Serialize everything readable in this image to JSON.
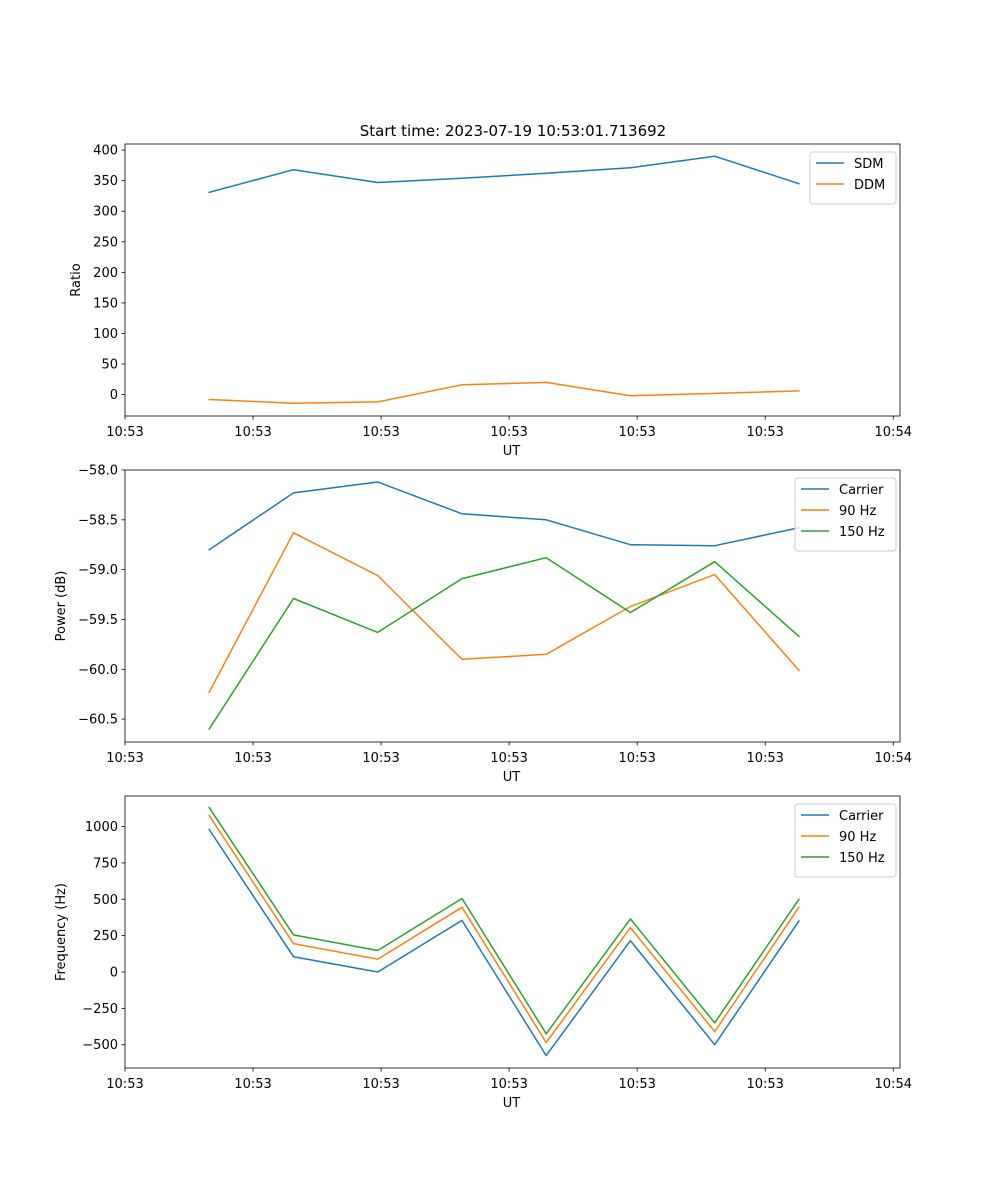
{
  "chart_data": [
    {
      "type": "line",
      "title": "Start time: 2023-07-19 10:53:01.713692",
      "xlabel": "UT",
      "ylabel": "Ratio",
      "x_index": [
        1,
        2,
        3,
        4,
        5,
        6,
        7,
        8
      ],
      "xlim": [
        0,
        9.2
      ],
      "x_tick_positions": [
        0,
        1.52,
        3.04,
        4.56,
        6.08,
        7.6,
        9.12
      ],
      "x_tick_labels": [
        "10:53",
        "10:53",
        "10:53",
        "10:53",
        "10:53",
        "10:53",
        "10:54"
      ],
      "ylim": [
        -35,
        410
      ],
      "y_ticks": [
        0,
        50,
        100,
        150,
        200,
        250,
        300,
        350,
        400
      ],
      "y_tick_labels": [
        "0",
        "50",
        "100",
        "150",
        "200",
        "250",
        "300",
        "350",
        "400"
      ],
      "legend": "top-right",
      "series": [
        {
          "name": "SDM",
          "color": "#1f77b4",
          "values": [
            331,
            368,
            347,
            354,
            362,
            371,
            390,
            345
          ]
        },
        {
          "name": "DDM",
          "color": "#ff7f0e",
          "values": [
            -8,
            -14,
            -12,
            16,
            20,
            -2,
            2,
            6
          ]
        }
      ]
    },
    {
      "type": "line",
      "title": "",
      "xlabel": "UT",
      "ylabel": "Power (dB)",
      "x_index": [
        1,
        2,
        3,
        4,
        5,
        6,
        7,
        8
      ],
      "xlim": [
        0,
        9.2
      ],
      "x_tick_positions": [
        0,
        1.52,
        3.04,
        4.56,
        6.08,
        7.6,
        9.12
      ],
      "x_tick_labels": [
        "10:53",
        "10:53",
        "10:53",
        "10:53",
        "10:53",
        "10:53",
        "10:54"
      ],
      "ylim": [
        -60.73,
        -58.0
      ],
      "y_ticks": [
        -58.0,
        -58.5,
        -59.0,
        -59.5,
        -60.0,
        -60.5
      ],
      "y_tick_labels": [
        "−58.0",
        "−58.5",
        "−59.0",
        "−59.5",
        "−60.0",
        "−60.5"
      ],
      "legend": "top-right",
      "series": [
        {
          "name": "Carrier",
          "color": "#1f77b4",
          "values": [
            -58.8,
            -58.23,
            -58.12,
            -58.44,
            -58.5,
            -58.75,
            -58.76,
            -58.58
          ]
        },
        {
          "name": "90 Hz",
          "color": "#ff7f0e",
          "values": [
            -60.23,
            -58.63,
            -59.06,
            -59.9,
            -59.85,
            -59.37,
            -59.05,
            -60.01
          ]
        },
        {
          "name": "150 Hz",
          "color": "#2ca02c",
          "values": [
            -60.6,
            -59.29,
            -59.63,
            -59.09,
            -58.88,
            -59.43,
            -58.92,
            -59.67
          ]
        }
      ]
    },
    {
      "type": "line",
      "title": "",
      "xlabel": "UT",
      "ylabel": "Frequency (Hz)",
      "x_index": [
        1,
        2,
        3,
        4,
        5,
        6,
        7,
        8
      ],
      "xlim": [
        0,
        9.2
      ],
      "x_tick_positions": [
        0,
        1.52,
        3.04,
        4.56,
        6.08,
        7.6,
        9.12
      ],
      "x_tick_labels": [
        "10:53",
        "10:53",
        "10:53",
        "10:53",
        "10:53",
        "10:53",
        "10:54"
      ],
      "ylim": [
        -660,
        1210
      ],
      "y_ticks": [
        -500,
        -250,
        0,
        250,
        500,
        750,
        1000
      ],
      "y_tick_labels": [
        "−500",
        "−250",
        "0",
        "250",
        "500",
        "750",
        "1000"
      ],
      "legend": "top-right",
      "series": [
        {
          "name": "Carrier",
          "color": "#1f77b4",
          "values": [
            980,
            105,
            0,
            355,
            -575,
            215,
            -500,
            350
          ]
        },
        {
          "name": "90 Hz",
          "color": "#ff7f0e",
          "values": [
            1075,
            195,
            88,
            445,
            -485,
            305,
            -410,
            445
          ]
        },
        {
          "name": "150 Hz",
          "color": "#2ca02c",
          "values": [
            1130,
            255,
            148,
            505,
            -425,
            365,
            -350,
            500
          ]
        }
      ]
    }
  ]
}
